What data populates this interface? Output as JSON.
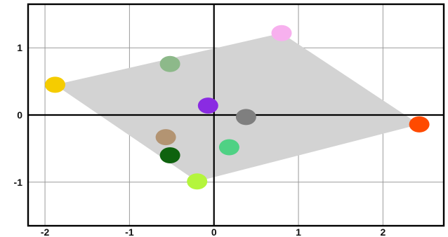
{
  "chart_data": {
    "type": "scatter",
    "title": "",
    "xlabel": "",
    "ylabel": "",
    "xlim": [
      -2.2,
      2.72
    ],
    "ylim": [
      -1.65,
      1.65
    ],
    "grid": true,
    "x_ticks": [
      -2,
      -1,
      0,
      1,
      2
    ],
    "y_ticks": [
      -1,
      0,
      1
    ],
    "x_tick_labels": [
      "-2",
      "-1",
      "0",
      "1",
      "2"
    ],
    "y_tick_labels": [
      "-1",
      "0",
      "1"
    ],
    "hull_color": "#d3d3d3",
    "hull": [
      [
        -1.88,
        0.45
      ],
      [
        0.8,
        1.22
      ],
      [
        2.43,
        -0.14
      ],
      [
        -0.2,
        -0.99
      ]
    ],
    "points": [
      {
        "x": -1.88,
        "y": 0.45,
        "color": "#f5cc00"
      },
      {
        "x": 0.8,
        "y": 1.22,
        "color": "#f7b0ee"
      },
      {
        "x": -0.52,
        "y": 0.76,
        "color": "#8db98a"
      },
      {
        "x": -0.07,
        "y": 0.14,
        "color": "#8a2be2"
      },
      {
        "x": 0.38,
        "y": -0.03,
        "color": "#7f7f7f"
      },
      {
        "x": 2.43,
        "y": -0.14,
        "color": "#ff4a00"
      },
      {
        "x": -0.57,
        "y": -0.33,
        "color": "#b39472"
      },
      {
        "x": 0.18,
        "y": -0.48,
        "color": "#4fd184"
      },
      {
        "x": -0.52,
        "y": -0.6,
        "color": "#0e620e"
      },
      {
        "x": -0.2,
        "y": -0.99,
        "color": "#b4f53c"
      }
    ]
  }
}
